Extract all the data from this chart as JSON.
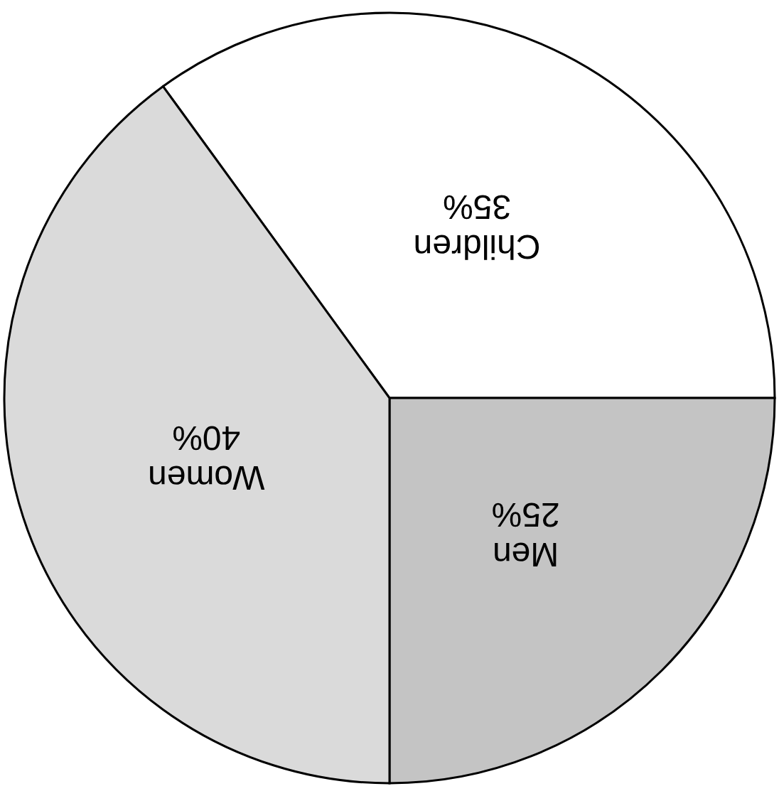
{
  "chart_data": {
    "type": "pie",
    "categories": [
      "Children",
      "Men",
      "Women"
    ],
    "values": [
      35,
      25,
      40
    ],
    "colors": [
      "#ffffff",
      "#c4c4c4",
      "#dadada"
    ],
    "value_labels": [
      "35%",
      "25%",
      "40%"
    ]
  }
}
